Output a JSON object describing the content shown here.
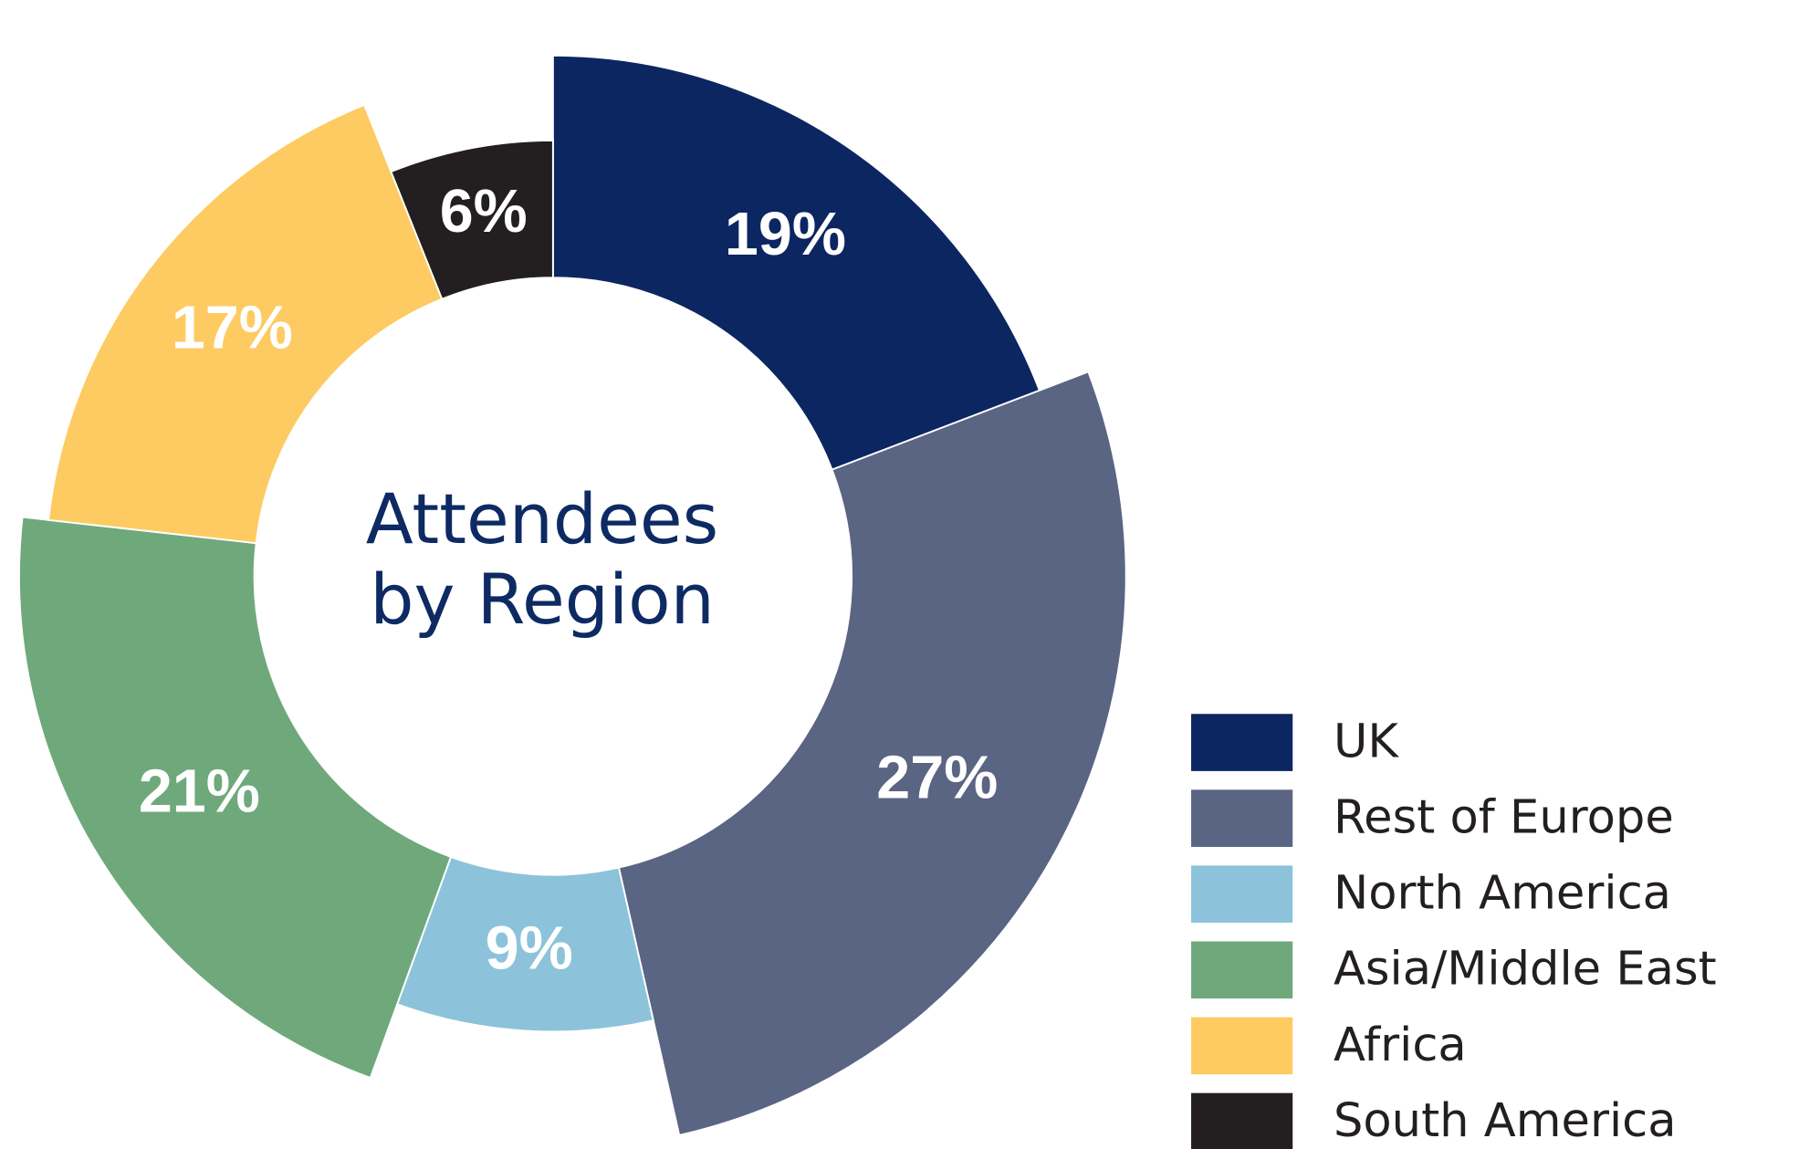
{
  "chart_data": {
    "type": "pie",
    "title": "Attendees by Region",
    "categories": [
      "UK",
      "Rest of Europe",
      "North America",
      "Asia/Middle East",
      "Africa",
      "South America"
    ],
    "values": [
      19,
      27,
      9,
      21,
      17,
      6
    ],
    "value_labels": [
      "19%",
      "27%",
      "9%",
      "21%",
      "17%",
      "6%"
    ],
    "colors": [
      "#0c2661",
      "#5a6483",
      "#8cc3da",
      "#6fa97b",
      "#fdcb62",
      "#231f20"
    ]
  }
}
